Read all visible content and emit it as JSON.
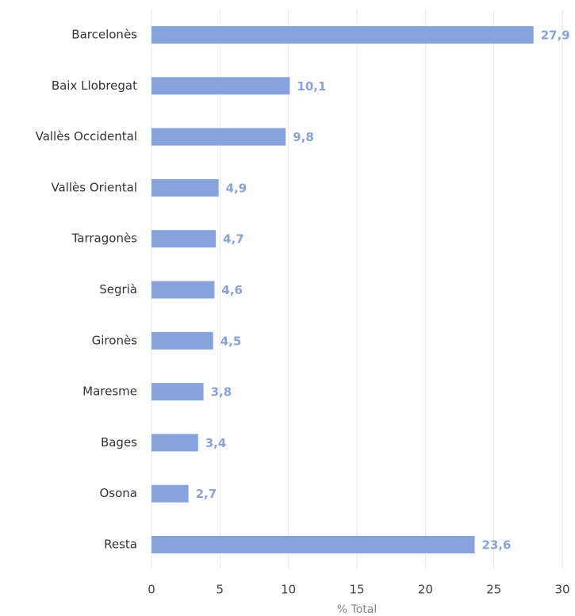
{
  "chart_data": {
    "type": "bar",
    "orientation": "horizontal",
    "x_label": "% Total",
    "categories": [
      "Barcelonès",
      "Baix Llobregat",
      "Vallès Occidental",
      "Vallès Oriental",
      "Tarragonès",
      "Segrià",
      "Gironès",
      "Maresme",
      "Bages",
      "Osona",
      "Resta"
    ],
    "values": [
      27.9,
      10.1,
      9.8,
      4.9,
      4.7,
      4.6,
      4.5,
      3.8,
      3.4,
      2.7,
      23.6
    ],
    "value_labels": [
      "27,9",
      "10,1",
      "9,8",
      "4,9",
      "4,7",
      "4,6",
      "4,5",
      "3,8",
      "3,4",
      "2,7",
      "23,6"
    ],
    "color": "#87a3dd",
    "xlim": [
      0,
      30
    ],
    "xticks": [
      0,
      5,
      10,
      15,
      20,
      25,
      30
    ],
    "grid": true
  }
}
